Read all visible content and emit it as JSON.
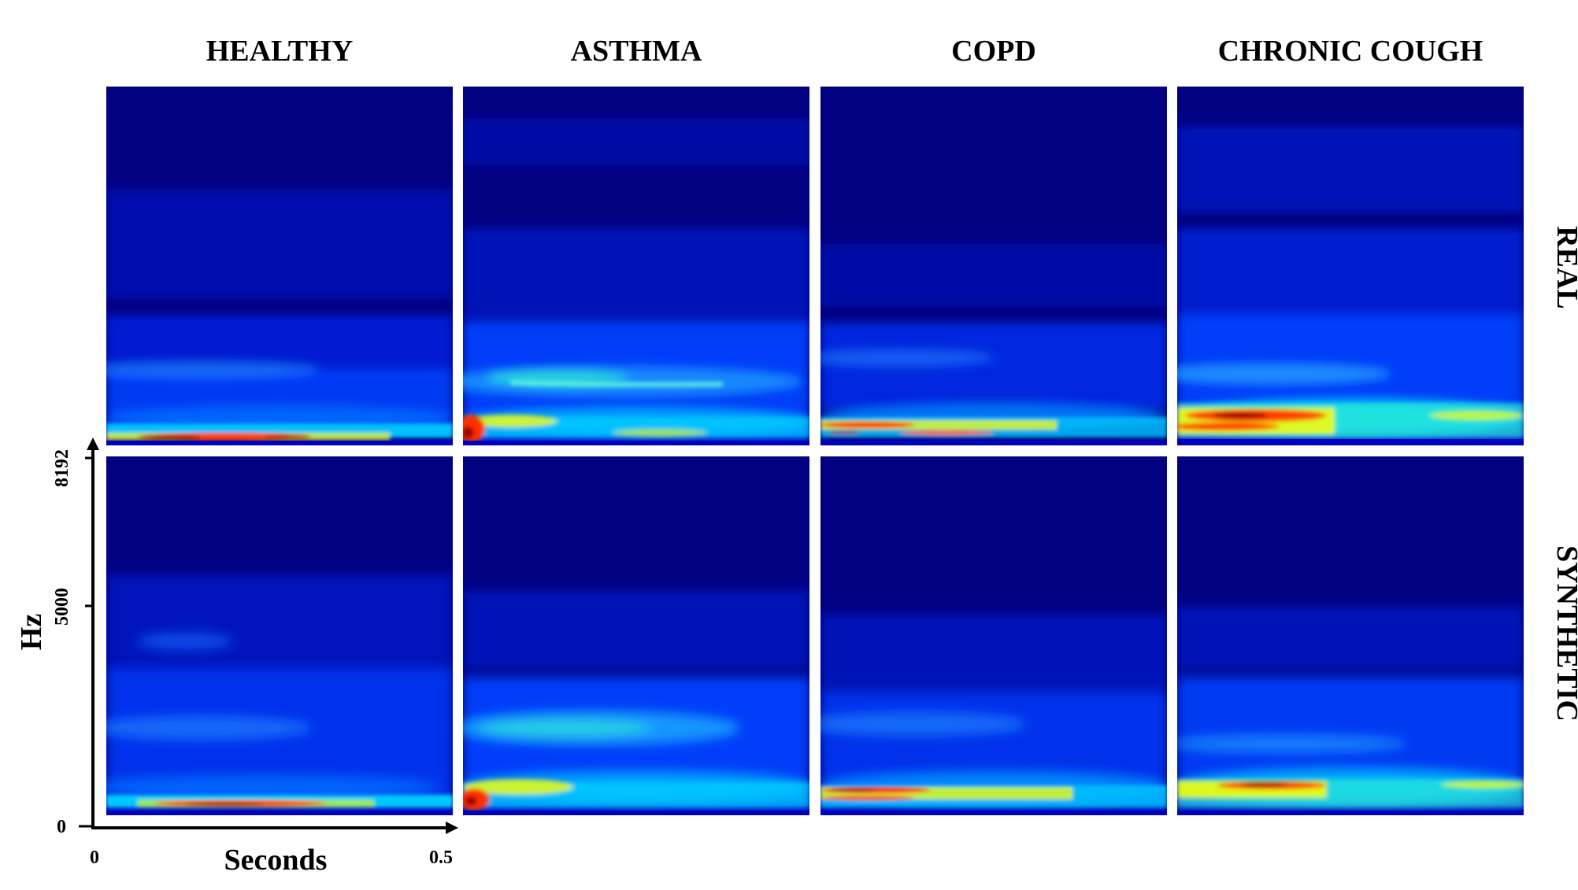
{
  "columns": [
    {
      "label": "HEALTHY"
    },
    {
      "label": "ASTHMA"
    },
    {
      "label": "COPD"
    },
    {
      "label": "CHRONIC COUGH"
    }
  ],
  "rows": [
    {
      "label": "REAL"
    },
    {
      "label": "SYNTHETIC"
    }
  ],
  "axes": {
    "y_title": "Hz",
    "y_ticks": [
      "0",
      "5000",
      "8192"
    ],
    "x_title": "Seconds",
    "x_ticks": [
      "0",
      "0.5"
    ]
  },
  "colormap": {
    "background": "#000080",
    "low": "#0000ff",
    "mid_low": "#00aaff",
    "mid": "#33ffcc",
    "mid_high": "#ffff00",
    "high": "#ff3300",
    "peak": "#aa0000"
  }
}
